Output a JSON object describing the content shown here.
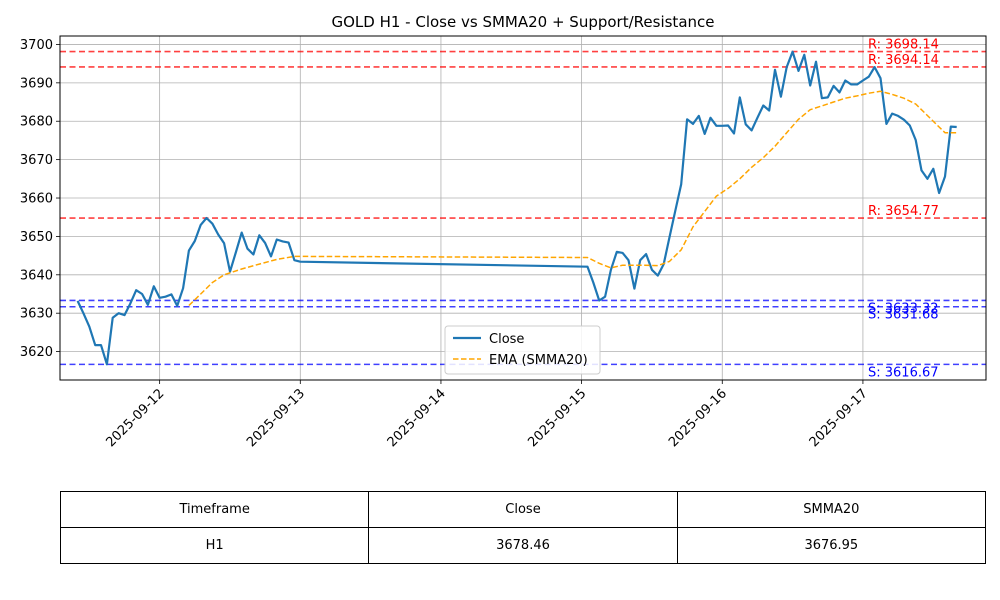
{
  "chart_data": {
    "type": "line",
    "title": "GOLD H1 - Close vs SMMA20 + Support/Resistance",
    "xlabel": "",
    "ylabel": "",
    "x_ticks": [
      "2025-09-12",
      "2025-09-13",
      "2025-09-14",
      "2025-09-15",
      "2025-09-16",
      "2025-09-17"
    ],
    "x_range": [
      "2025-09-11 07:00",
      "2025-09-17 21:00"
    ],
    "y_ticks": [
      3620,
      3630,
      3640,
      3650,
      3660,
      3670,
      3680,
      3690,
      3700
    ],
    "ylim": [
      3612.6,
      3702.2
    ],
    "grid": true,
    "legend_position": "lower-center",
    "series": [
      {
        "name": "Close",
        "color": "#1f77b4",
        "style": "solid",
        "points": [
          [
            "2025-09-11 10:00",
            3633.2
          ],
          [
            "2025-09-11 11:00",
            3630.0
          ],
          [
            "2025-09-11 12:00",
            3626.5
          ],
          [
            "2025-09-11 13:00",
            3621.7
          ],
          [
            "2025-09-11 14:00",
            3621.7
          ],
          [
            "2025-09-11 15:00",
            3616.7
          ],
          [
            "2025-09-11 16:00",
            3628.8
          ],
          [
            "2025-09-11 17:00",
            3630.0
          ],
          [
            "2025-09-11 18:00",
            3629.5
          ],
          [
            "2025-09-11 19:00",
            3632.5
          ],
          [
            "2025-09-11 20:00",
            3636.0
          ],
          [
            "2025-09-11 21:00",
            3635.0
          ],
          [
            "2025-09-11 22:00",
            3632.2
          ],
          [
            "2025-09-11 23:00",
            3637.0
          ],
          [
            "2025-09-12 00:00",
            3634.0
          ],
          [
            "2025-09-12 01:00",
            3634.3
          ],
          [
            "2025-09-12 02:00",
            3634.9
          ],
          [
            "2025-09-12 03:00",
            3631.9
          ],
          [
            "2025-09-12 04:00",
            3636.5
          ],
          [
            "2025-09-12 05:00",
            3646.3
          ],
          [
            "2025-09-12 06:00",
            3648.8
          ],
          [
            "2025-09-12 07:00",
            3653.0
          ],
          [
            "2025-09-12 08:00",
            3654.8
          ],
          [
            "2025-09-12 09:00",
            3653.3
          ],
          [
            "2025-09-12 10:00",
            3650.5
          ],
          [
            "2025-09-12 11:00",
            3648.2
          ],
          [
            "2025-09-12 12:00",
            3640.8
          ],
          [
            "2025-09-12 13:00",
            3645.8
          ],
          [
            "2025-09-12 14:00",
            3651.0
          ],
          [
            "2025-09-12 15:00",
            3646.8
          ],
          [
            "2025-09-12 16:00",
            3645.3
          ],
          [
            "2025-09-12 17:00",
            3650.3
          ],
          [
            "2025-09-12 18:00",
            3648.3
          ],
          [
            "2025-09-12 19:00",
            3644.8
          ],
          [
            "2025-09-12 20:00",
            3649.2
          ],
          [
            "2025-09-12 21:00",
            3648.7
          ],
          [
            "2025-09-12 22:00",
            3648.4
          ],
          [
            "2025-09-12 23:00",
            3643.8
          ],
          [
            "2025-09-13 00:00",
            3643.4
          ],
          [
            "2025-09-15 01:00",
            3642.1
          ],
          [
            "2025-09-15 02:00",
            3638.0
          ],
          [
            "2025-09-15 03:00",
            3633.3
          ],
          [
            "2025-09-15 04:00",
            3634.3
          ],
          [
            "2025-09-15 05:00",
            3641.3
          ],
          [
            "2025-09-15 06:00",
            3646.0
          ],
          [
            "2025-09-15 07:00",
            3645.7
          ],
          [
            "2025-09-15 08:00",
            3643.8
          ],
          [
            "2025-09-15 09:00",
            3636.4
          ],
          [
            "2025-09-15 10:00",
            3643.8
          ],
          [
            "2025-09-15 11:00",
            3645.4
          ],
          [
            "2025-09-15 12:00",
            3641.3
          ],
          [
            "2025-09-15 13:00",
            3639.8
          ],
          [
            "2025-09-15 14:00",
            3642.8
          ],
          [
            "2025-09-15 15:00",
            3649.8
          ],
          [
            "2025-09-15 16:00",
            3656.8
          ],
          [
            "2025-09-15 17:00",
            3663.6
          ],
          [
            "2025-09-15 18:00",
            3680.5
          ],
          [
            "2025-09-15 19:00",
            3679.3
          ],
          [
            "2025-09-15 20:00",
            3681.4
          ],
          [
            "2025-09-15 21:00",
            3676.7
          ],
          [
            "2025-09-15 22:00",
            3680.9
          ],
          [
            "2025-09-15 23:00",
            3678.8
          ],
          [
            "2025-09-16 00:00",
            3678.8
          ],
          [
            "2025-09-16 01:00",
            3678.9
          ],
          [
            "2025-09-16 02:00",
            3676.8
          ],
          [
            "2025-09-16 03:00",
            3686.2
          ],
          [
            "2025-09-16 04:00",
            3679.2
          ],
          [
            "2025-09-16 05:00",
            3677.6
          ],
          [
            "2025-09-16 06:00",
            3680.9
          ],
          [
            "2025-09-16 07:00",
            3684.1
          ],
          [
            "2025-09-16 08:00",
            3682.8
          ],
          [
            "2025-09-16 09:00",
            3693.4
          ],
          [
            "2025-09-16 10:00",
            3686.4
          ],
          [
            "2025-09-16 11:00",
            3694.1
          ],
          [
            "2025-09-16 12:00",
            3698.1
          ],
          [
            "2025-09-16 13:00",
            3693.1
          ],
          [
            "2025-09-16 14:00",
            3697.3
          ],
          [
            "2025-09-16 15:00",
            3689.3
          ],
          [
            "2025-09-16 16:00",
            3695.5
          ],
          [
            "2025-09-16 17:00",
            3686.0
          ],
          [
            "2025-09-16 18:00",
            3686.2
          ],
          [
            "2025-09-16 19:00",
            3689.2
          ],
          [
            "2025-09-16 20:00",
            3687.5
          ],
          [
            "2025-09-16 21:00",
            3690.6
          ],
          [
            "2025-09-16 22:00",
            3689.6
          ],
          [
            "2025-09-16 23:00",
            3689.6
          ],
          [
            "2025-09-17 00:00",
            3690.6
          ],
          [
            "2025-09-17 01:00",
            3691.6
          ],
          [
            "2025-09-17 02:00",
            3694.1
          ],
          [
            "2025-09-17 03:00",
            3691.2
          ],
          [
            "2025-09-17 04:00",
            3679.3
          ],
          [
            "2025-09-17 05:00",
            3682.0
          ],
          [
            "2025-09-17 06:00",
            3681.4
          ],
          [
            "2025-09-17 07:00",
            3680.4
          ],
          [
            "2025-09-17 08:00",
            3678.9
          ],
          [
            "2025-09-17 09:00",
            3675.1
          ],
          [
            "2025-09-17 10:00",
            3667.2
          ],
          [
            "2025-09-17 11:00",
            3665.0
          ],
          [
            "2025-09-17 12:00",
            3667.6
          ],
          [
            "2025-09-17 13:00",
            3661.3
          ],
          [
            "2025-09-17 14:00",
            3665.6
          ],
          [
            "2025-09-17 15:00",
            3678.6
          ],
          [
            "2025-09-17 16:00",
            3678.5
          ]
        ]
      },
      {
        "name": "EMA (SMMA20)",
        "color": "#ffa500",
        "style": "dashed",
        "points": [
          [
            "2025-09-12 05:00",
            3632.0
          ],
          [
            "2025-09-12 07:00",
            3635.0
          ],
          [
            "2025-09-12 09:00",
            3638.0
          ],
          [
            "2025-09-12 11:00",
            3640.0
          ],
          [
            "2025-09-12 14:00",
            3641.5
          ],
          [
            "2025-09-12 17:00",
            3642.8
          ],
          [
            "2025-09-12 20:00",
            3644.0
          ],
          [
            "2025-09-12 23:00",
            3644.8
          ],
          [
            "2025-09-13 00:00",
            3644.8
          ],
          [
            "2025-09-15 01:00",
            3644.5
          ],
          [
            "2025-09-15 03:00",
            3643.0
          ],
          [
            "2025-09-15 05:00",
            3641.8
          ],
          [
            "2025-09-15 07:00",
            3642.5
          ],
          [
            "2025-09-15 10:00",
            3642.5
          ],
          [
            "2025-09-15 13:00",
            3642.4
          ],
          [
            "2025-09-15 15:00",
            3643.5
          ],
          [
            "2025-09-15 17:00",
            3646.5
          ],
          [
            "2025-09-15 19:00",
            3652.5
          ],
          [
            "2025-09-15 21:00",
            3656.5
          ],
          [
            "2025-09-15 23:00",
            3660.5
          ],
          [
            "2025-09-16 01:00",
            3662.5
          ],
          [
            "2025-09-16 03:00",
            3665.0
          ],
          [
            "2025-09-16 05:00",
            3668.0
          ],
          [
            "2025-09-16 07:00",
            3670.5
          ],
          [
            "2025-09-16 09:00",
            3673.5
          ],
          [
            "2025-09-16 11:00",
            3677.0
          ],
          [
            "2025-09-16 13:00",
            3680.5
          ],
          [
            "2025-09-16 15:00",
            3683.0
          ],
          [
            "2025-09-16 17:00",
            3684.0
          ],
          [
            "2025-09-16 19:00",
            3685.0
          ],
          [
            "2025-09-16 21:00",
            3686.0
          ],
          [
            "2025-09-16 23:00",
            3686.6
          ],
          [
            "2025-09-17 01:00",
            3687.3
          ],
          [
            "2025-09-17 03:00",
            3687.8
          ],
          [
            "2025-09-17 05:00",
            3687.0
          ],
          [
            "2025-09-17 07:00",
            3686.0
          ],
          [
            "2025-09-17 09:00",
            3684.5
          ],
          [
            "2025-09-17 11:00",
            3681.5
          ],
          [
            "2025-09-17 13:00",
            3678.5
          ],
          [
            "2025-09-17 14:00",
            3677.0
          ],
          [
            "2025-09-17 16:00",
            3677.0
          ]
        ]
      }
    ],
    "levels": [
      {
        "kind": "resistance",
        "value": 3698.14,
        "label": "R: 3698.14",
        "color": "#ff0000"
      },
      {
        "kind": "resistance",
        "value": 3694.14,
        "label": "R: 3694.14",
        "color": "#ff0000"
      },
      {
        "kind": "resistance",
        "value": 3654.77,
        "label": "R: 3654.77",
        "color": "#ff0000"
      },
      {
        "kind": "support",
        "value": 3633.32,
        "label": "S: 3633.32",
        "color": "#0000ff"
      },
      {
        "kind": "support",
        "value": 3631.68,
        "label": "S: 3631.68",
        "color": "#0000ff"
      },
      {
        "kind": "support",
        "value": 3616.67,
        "label": "S: 3616.67",
        "color": "#0000ff"
      }
    ],
    "legend": [
      "Close",
      "EMA (SMMA20)"
    ]
  },
  "summary_table": {
    "headers": [
      "Timeframe",
      "Close",
      "SMMA20"
    ],
    "row": [
      "H1",
      "3678.46",
      "3676.95"
    ]
  }
}
